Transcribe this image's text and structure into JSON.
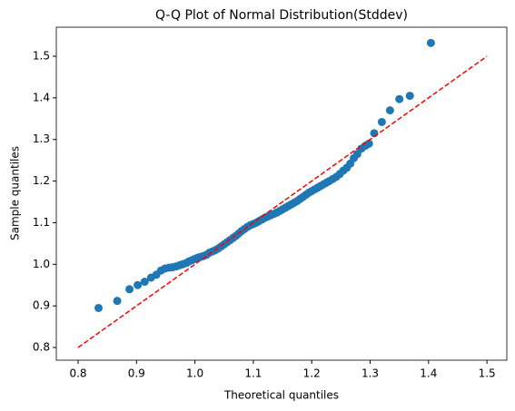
{
  "chart_data": {
    "type": "scatter",
    "title": "Q-Q Plot of Normal Distribution(Stddev)",
    "xlabel": "Theoretical quantiles",
    "ylabel": "Sample quantiles",
    "color": "#1f77b4",
    "x": [
      0.835,
      0.867,
      0.888,
      0.902,
      0.914,
      0.925,
      0.934,
      0.942,
      0.949,
      0.956,
      0.962,
      0.968,
      0.974,
      0.979,
      0.985,
      0.99,
      0.995,
      1.0,
      1.005,
      1.01,
      1.015,
      1.02,
      1.025,
      1.03,
      1.035,
      1.04,
      1.045,
      1.05,
      1.055,
      1.06,
      1.065,
      1.07,
      1.075,
      1.08,
      1.085,
      1.09,
      1.095,
      1.1,
      1.105,
      1.11,
      1.115,
      1.12,
      1.125,
      1.13,
      1.135,
      1.14,
      1.145,
      1.15,
      1.155,
      1.16,
      1.165,
      1.17,
      1.175,
      1.18,
      1.185,
      1.19,
      1.195,
      1.2,
      1.205,
      1.21,
      1.215,
      1.22,
      1.225,
      1.23,
      1.236,
      1.242,
      1.248,
      1.254,
      1.26,
      1.266,
      1.272,
      1.278,
      1.285,
      1.292,
      1.298,
      1.307,
      1.32,
      1.334,
      1.35,
      1.368,
      1.404
    ],
    "y": [
      0.895,
      0.912,
      0.94,
      0.95,
      0.958,
      0.968,
      0.975,
      0.985,
      0.99,
      0.992,
      0.993,
      0.995,
      0.998,
      1.0,
      1.003,
      1.007,
      1.01,
      1.013,
      1.016,
      1.018,
      1.02,
      1.023,
      1.028,
      1.031,
      1.034,
      1.038,
      1.043,
      1.048,
      1.053,
      1.058,
      1.063,
      1.068,
      1.074,
      1.08,
      1.085,
      1.09,
      1.094,
      1.097,
      1.1,
      1.104,
      1.108,
      1.112,
      1.115,
      1.118,
      1.121,
      1.124,
      1.128,
      1.132,
      1.136,
      1.14,
      1.144,
      1.148,
      1.152,
      1.157,
      1.162,
      1.167,
      1.172,
      1.176,
      1.18,
      1.184,
      1.188,
      1.192,
      1.196,
      1.2,
      1.205,
      1.21,
      1.217,
      1.225,
      1.232,
      1.242,
      1.255,
      1.265,
      1.278,
      1.285,
      1.29,
      1.315,
      1.342,
      1.37,
      1.397,
      1.405,
      1.532
    ],
    "reference_line": {
      "x": [
        0.8,
        1.5
      ],
      "y": [
        0.8,
        1.5
      ],
      "color": "#ff0000"
    },
    "xlim": [
      0.7627,
      1.534
    ],
    "ylim": [
      0.7695,
      1.5698
    ],
    "xticks": [
      0.8,
      0.9,
      {
        "value": 1,
        "label": "1.0"
      },
      1.1,
      1.2,
      1.3,
      1.4,
      1.5
    ],
    "yticks": [
      0.8,
      0.9,
      {
        "value": 1,
        "label": "1.0"
      },
      1.1,
      1.2,
      1.3,
      1.4,
      1.5
    ]
  }
}
